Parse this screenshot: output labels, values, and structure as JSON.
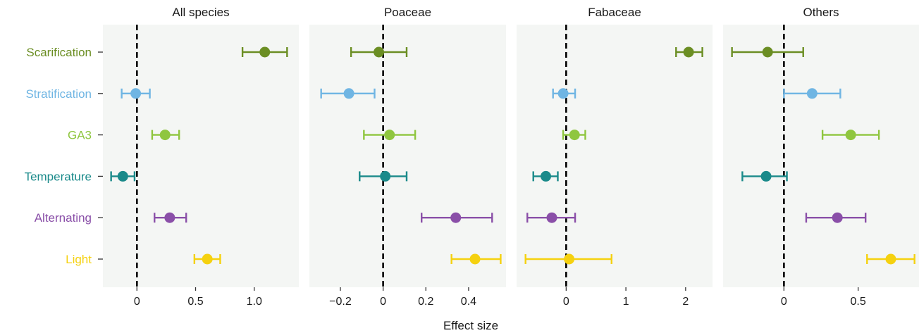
{
  "chart_data": {
    "type": "scatter",
    "subtype": "forest-plot",
    "xlabel": "Effect size",
    "ylabel": "",
    "grid": false,
    "reference_line": 0,
    "categories": [
      "Scarification",
      "Stratification",
      "GA3",
      "Temperature",
      "Alternating",
      "Light"
    ],
    "colors": {
      "Scarification": "#6b8e23",
      "Stratification": "#6fb5e3",
      "GA3": "#8fc63f",
      "Temperature": "#1a8a8a",
      "Alternating": "#8a4fa8",
      "Light": "#f5d10f"
    },
    "panels": [
      {
        "title": "All species",
        "xlim": [
          -0.29,
          1.38
        ],
        "xticks": [
          0,
          0.5,
          1.0
        ],
        "xtick_labels": [
          "0",
          "0.5",
          "1.0"
        ],
        "points": [
          {
            "category": "Scarification",
            "estimate": 1.09,
            "lower": 0.9,
            "upper": 1.28
          },
          {
            "category": "Stratification",
            "estimate": -0.01,
            "lower": -0.13,
            "upper": 0.11
          },
          {
            "category": "GA3",
            "estimate": 0.24,
            "lower": 0.13,
            "upper": 0.36
          },
          {
            "category": "Temperature",
            "estimate": -0.12,
            "lower": -0.22,
            "upper": -0.02
          },
          {
            "category": "Alternating",
            "estimate": 0.28,
            "lower": 0.15,
            "upper": 0.42
          },
          {
            "category": "Light",
            "estimate": 0.6,
            "lower": 0.49,
            "upper": 0.71
          }
        ]
      },
      {
        "title": "Poaceae",
        "xlim": [
          -0.345,
          0.575
        ],
        "xticks": [
          -0.2,
          0,
          0.2,
          0.4
        ],
        "xtick_labels": [
          "−0.2",
          "0",
          "0.2",
          "0.4"
        ],
        "points": [
          {
            "category": "Scarification",
            "estimate": -0.02,
            "lower": -0.15,
            "upper": 0.11
          },
          {
            "category": "Stratification",
            "estimate": -0.16,
            "lower": -0.29,
            "upper": -0.04
          },
          {
            "category": "GA3",
            "estimate": 0.03,
            "lower": -0.09,
            "upper": 0.15
          },
          {
            "category": "Temperature",
            "estimate": 0.01,
            "lower": -0.11,
            "upper": 0.11
          },
          {
            "category": "Alternating",
            "estimate": 0.34,
            "lower": 0.18,
            "upper": 0.51
          },
          {
            "category": "Light",
            "estimate": 0.43,
            "lower": 0.32,
            "upper": 0.55
          }
        ]
      },
      {
        "title": "Fabaceae",
        "xlim": [
          -0.83,
          2.45
        ],
        "xticks": [
          0,
          1,
          2
        ],
        "xtick_labels": [
          "0",
          "1",
          "2"
        ],
        "points": [
          {
            "category": "Scarification",
            "estimate": 2.05,
            "lower": 1.84,
            "upper": 2.28
          },
          {
            "category": "Stratification",
            "estimate": -0.05,
            "lower": -0.22,
            "upper": 0.15
          },
          {
            "category": "GA3",
            "estimate": 0.14,
            "lower": -0.05,
            "upper": 0.32
          },
          {
            "category": "Temperature",
            "estimate": -0.34,
            "lower": -0.55,
            "upper": -0.14
          },
          {
            "category": "Alternating",
            "estimate": -0.24,
            "lower": -0.65,
            "upper": 0.15
          },
          {
            "category": "Light",
            "estimate": 0.05,
            "lower": -0.68,
            "upper": 0.76
          }
        ]
      },
      {
        "title": "Others",
        "xlim": [
          -0.41,
          0.91
        ],
        "xticks": [
          0,
          0.5
        ],
        "xtick_labels": [
          "0",
          "0.5"
        ],
        "points": [
          {
            "category": "Scarification",
            "estimate": -0.11,
            "lower": -0.35,
            "upper": 0.13
          },
          {
            "category": "Stratification",
            "estimate": 0.19,
            "lower": 0.0,
            "upper": 0.38
          },
          {
            "category": "GA3",
            "estimate": 0.45,
            "lower": 0.26,
            "upper": 0.64
          },
          {
            "category": "Temperature",
            "estimate": -0.12,
            "lower": -0.28,
            "upper": 0.02
          },
          {
            "category": "Alternating",
            "estimate": 0.36,
            "lower": 0.15,
            "upper": 0.55
          },
          {
            "category": "Light",
            "estimate": 0.72,
            "lower": 0.56,
            "upper": 0.88
          }
        ]
      }
    ]
  }
}
